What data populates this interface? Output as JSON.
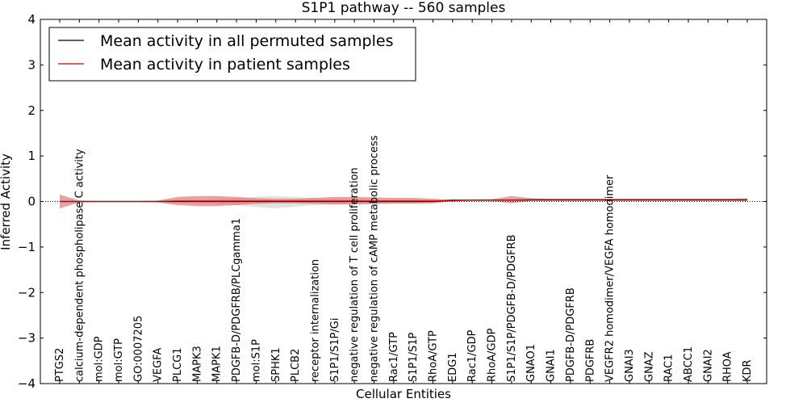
{
  "chart_data": {
    "type": "line",
    "title": "S1P1 pathway -- 560 samples",
    "xlabel": "Cellular Entities",
    "ylabel": "Inferred Activity",
    "ylim": [
      -4,
      4
    ],
    "yticks": [
      -4,
      -3,
      -2,
      -1,
      0,
      1,
      2,
      3,
      4
    ],
    "ytick_labels": [
      "−4",
      "−3",
      "−2",
      "−1",
      "0",
      "1",
      "2",
      "3",
      "4"
    ],
    "grid": false,
    "legend_position": "top-left",
    "categories": [
      "PTGS2",
      "calcium-dependent phospholipase C activity",
      "mol:GDP",
      "mol:GTP",
      "GO:0007205",
      "VEGFA",
      "PLCG1",
      "MAPK3",
      "MAPK1",
      "PDGFB-D/PDGFRB/PLCgamma1",
      "mol:S1P",
      "SPHK1",
      "PLCB2",
      "receptor internalization",
      "S1P1/S1P/Gi",
      "negative regulation of T cell proliferation",
      "negative regulation of cAMP metabolic process",
      "Rac1/GTP",
      "S1P1/S1P",
      "RhoA/GTP",
      "EDG1",
      "Rac1/GDP",
      "RhoA/GDP",
      "S1P1/S1P/PDGFB-D/PDGFRB",
      "GNAO1",
      "GNAI1",
      "PDGFB-D/PDGFRB",
      "PDGFRB",
      "VEGFR2 homodimer/VEGFA homodimer",
      "GNAI3",
      "GNAZ",
      "RAC1",
      "ABCC1",
      "GNAI2",
      "RHOA",
      "KDR"
    ],
    "series": [
      {
        "name": "Mean activity in all permuted samples",
        "color": "#000000",
        "values": [
          0,
          0,
          0,
          0,
          0,
          0,
          0,
          0,
          0,
          0,
          0,
          0,
          0,
          0,
          0,
          0,
          0,
          0,
          0,
          0,
          0.03,
          0.03,
          0.03,
          0.03,
          0.03,
          0.03,
          0.03,
          0.03,
          0.03,
          0.03,
          0.03,
          0.03,
          0.03,
          0.03,
          0.03,
          0.03
        ],
        "band_upper": [
          0,
          0,
          0,
          0,
          0,
          0,
          0.03,
          0.04,
          0.05,
          0.07,
          0.1,
          0.12,
          0.1,
          0.07,
          0.06,
          0.05,
          0.05,
          0.04,
          0.04,
          0.04,
          0.03,
          0.03,
          0.03,
          0.03,
          0.03,
          0.03,
          0.03,
          0.03,
          0.03,
          0.03,
          0.03,
          0.03,
          0.03,
          0.03,
          0.03,
          0.03
        ],
        "band_lower": [
          0,
          0,
          0,
          0,
          0,
          0,
          -0.03,
          -0.04,
          -0.05,
          -0.08,
          -0.12,
          -0.15,
          -0.11,
          -0.08,
          -0.07,
          -0.06,
          -0.06,
          -0.06,
          -0.06,
          -0.06,
          0.02,
          0.02,
          0.02,
          0.02,
          0.02,
          0.02,
          0.02,
          0.02,
          0.02,
          0.02,
          0.02,
          0.02,
          0.02,
          0.02,
          0.02,
          0.02
        ],
        "band_color": "#c8c8c8"
      },
      {
        "name": "Mean activity in patient samples",
        "color": "#cc0000",
        "values": [
          0,
          0,
          0,
          0,
          0,
          0,
          0.01,
          0.01,
          0.01,
          0.01,
          0.01,
          0.01,
          0.01,
          0.01,
          0.01,
          0.01,
          0.01,
          0.01,
          0.01,
          0.01,
          0.02,
          0.03,
          0.03,
          0.03,
          0.04,
          0.04,
          0.04,
          0.04,
          0.04,
          0.04,
          0.04,
          0.04,
          0.04,
          0.04,
          0.04,
          0.04
        ],
        "band_upper": [
          0.15,
          0.02,
          0.01,
          0.01,
          0.01,
          0.02,
          0.1,
          0.12,
          0.12,
          0.1,
          0.07,
          0.06,
          0.06,
          0.08,
          0.1,
          0.1,
          0.09,
          0.08,
          0.08,
          0.06,
          0.04,
          0.04,
          0.05,
          0.12,
          0.07,
          0.06,
          0.06,
          0.06,
          0.06,
          0.06,
          0.06,
          0.06,
          0.06,
          0.06,
          0.06,
          0.07
        ],
        "band_lower": [
          -0.15,
          -0.02,
          -0.01,
          -0.01,
          -0.01,
          -0.02,
          -0.08,
          -0.1,
          -0.1,
          -0.08,
          -0.05,
          -0.04,
          -0.04,
          -0.05,
          -0.06,
          -0.06,
          -0.05,
          -0.04,
          -0.04,
          -0.03,
          0.0,
          0.01,
          0.01,
          -0.04,
          0.02,
          0.02,
          0.02,
          0.02,
          0.02,
          0.02,
          0.02,
          0.02,
          0.02,
          0.02,
          0.02,
          0.02
        ],
        "band_color": "#e06060"
      }
    ],
    "reference_line": {
      "y": 0,
      "style": "dotted",
      "color": "#000000"
    }
  }
}
